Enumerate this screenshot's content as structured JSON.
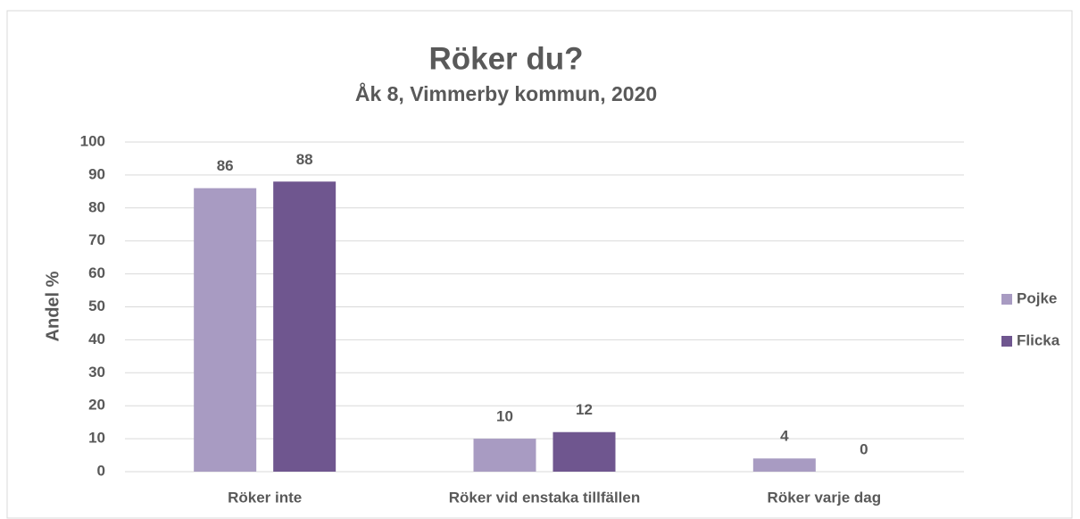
{
  "chart_data": {
    "type": "bar",
    "title": "Röker du?",
    "subtitle": "Åk 8, Vimmerby kommun, 2020",
    "y_label": "Andel %",
    "categories": [
      "Röker inte",
      "Röker vid enstaka tillfällen",
      "Röker varje dag"
    ],
    "series": [
      {
        "name": "Pojke",
        "color": "#a89bc2",
        "values": [
          86,
          10,
          4
        ]
      },
      {
        "name": "Flicka",
        "color": "#6f568f",
        "values": [
          88,
          12,
          0
        ]
      }
    ],
    "ylim": [
      0,
      100
    ],
    "yticks": [
      0,
      10,
      20,
      30,
      40,
      50,
      60,
      70,
      80,
      90,
      100
    ],
    "grid": true,
    "legend": "right"
  }
}
